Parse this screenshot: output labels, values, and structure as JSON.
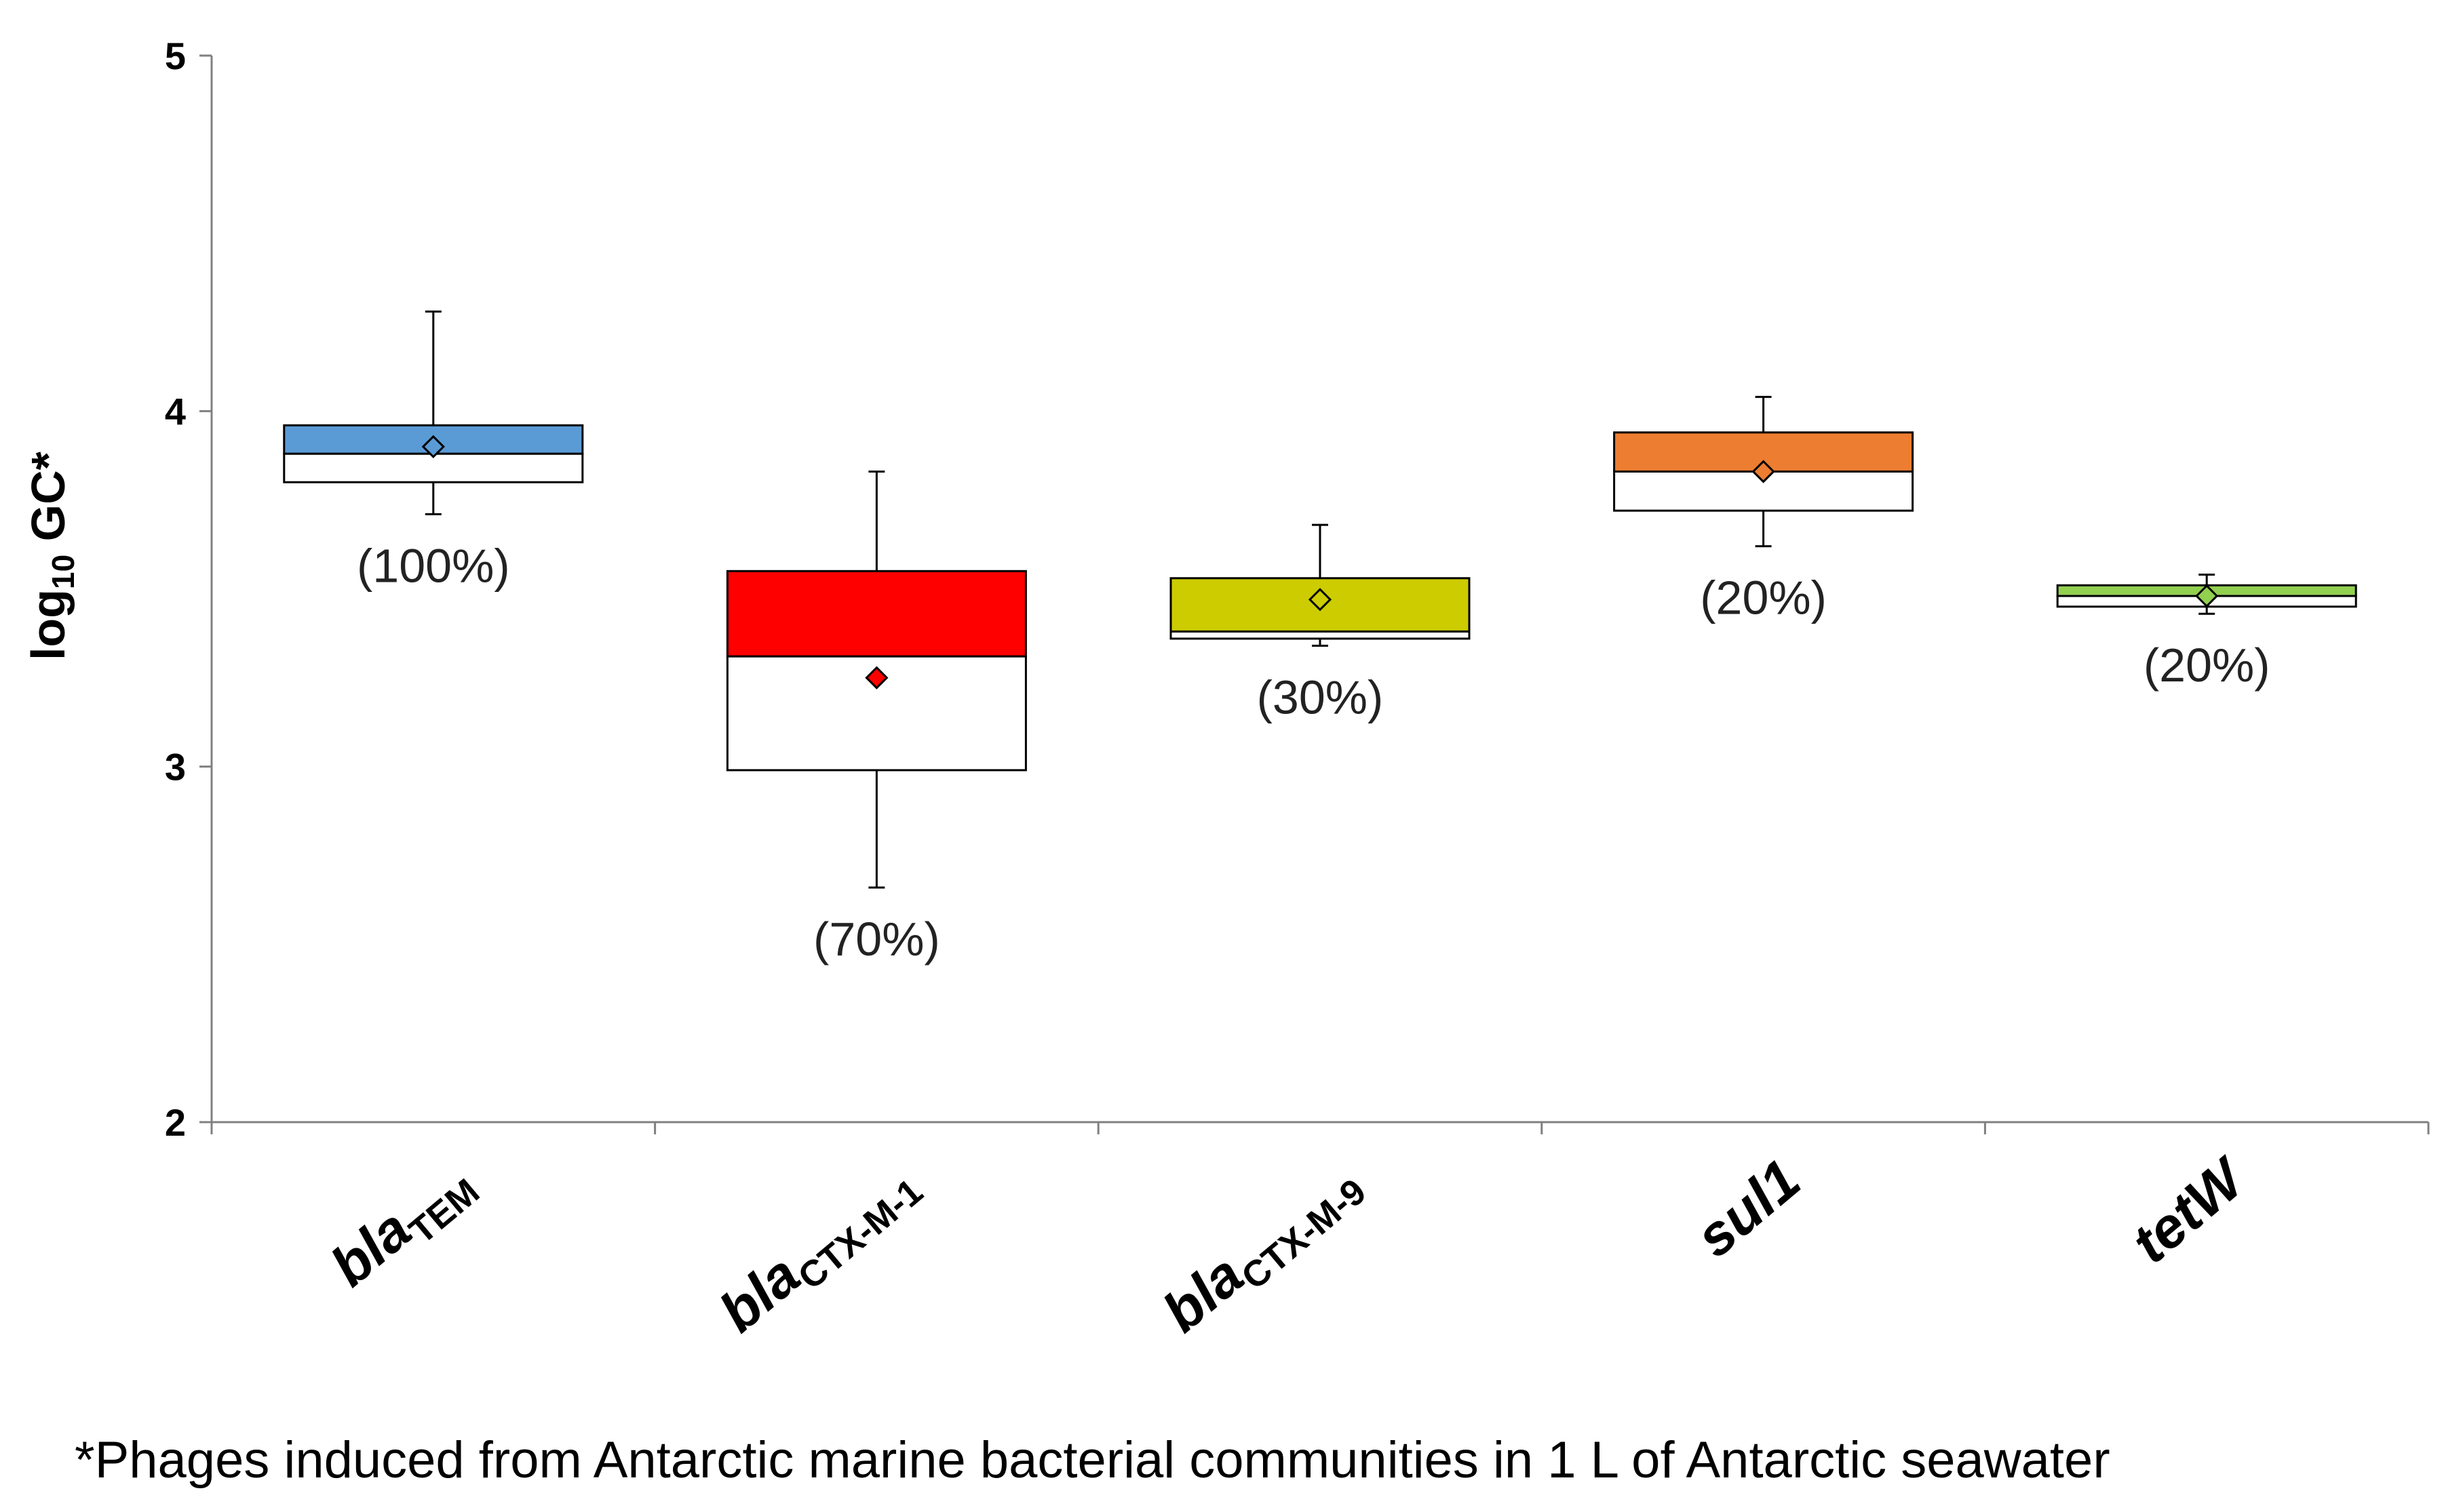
{
  "chart_data": {
    "type": "box",
    "ylabel": "log10 GC*",
    "ylabel_main": "log",
    "ylabel_sub": "10",
    "ylabel_tail": " GC*",
    "ylim": [
      2,
      5
    ],
    "yticks": [
      "2",
      "3",
      "4",
      "5"
    ],
    "grid": false,
    "categories": [
      {
        "base": "bla",
        "sub": "TEM",
        "full": "blaTEM"
      },
      {
        "base": "bla",
        "sub": "CTX-M-1",
        "full": "blaCTX-M-1"
      },
      {
        "base": "bla",
        "sub": "CTX-M-9",
        "full": "blaCTX-M-9"
      },
      {
        "base": "sul1",
        "sub": "",
        "full": "sul1"
      },
      {
        "base": "tetW",
        "sub": "",
        "full": "tetW"
      }
    ],
    "boxes": [
      {
        "min": 3.71,
        "q1": 3.8,
        "median": 3.88,
        "q3": 3.96,
        "max": 4.28,
        "mean": 3.9,
        "color": "#5b9bd5",
        "percent_label": "(100%)"
      },
      {
        "min": 2.66,
        "q1": 2.99,
        "median": 3.31,
        "q3": 3.55,
        "max": 3.83,
        "mean": 3.25,
        "color": "#ff0000",
        "percent_label": "(70%)"
      },
      {
        "min": 3.34,
        "q1": 3.36,
        "median": 3.38,
        "q3": 3.53,
        "max": 3.68,
        "mean": 3.47,
        "color": "#cccc00",
        "percent_label": "(30%)"
      },
      {
        "min": 3.62,
        "q1": 3.72,
        "median": 3.83,
        "q3": 3.94,
        "max": 4.04,
        "mean": 3.83,
        "color": "#ed7d31",
        "percent_label": "(20%)"
      },
      {
        "min": 3.43,
        "q1": 3.45,
        "median": 3.48,
        "q3": 3.51,
        "max": 3.54,
        "mean": 3.48,
        "color": "#92d050",
        "percent_label": "(20%)"
      }
    ]
  },
  "footnote": "*Phages induced from Antarctic marine bacterial communities in 1 L of Antarctic seawater"
}
